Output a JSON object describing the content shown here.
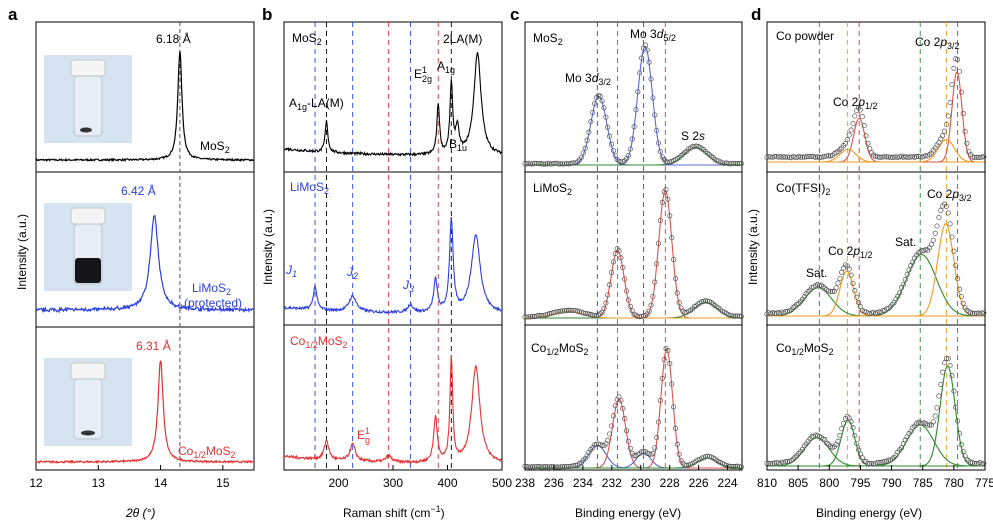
{
  "colors": {
    "black": "#000000",
    "blue": "#2b3fe0",
    "red": "#e23232",
    "green": "#2f8a2f",
    "orange": "#ef9a1f",
    "fitBlue": "#5a6ad8",
    "fitRed": "#d9534f",
    "gray": "#9a9a9a",
    "vialGlass": "#e6edf4",
    "vialCap": "#f4f4f4",
    "vialBg": "#d6e3f1"
  },
  "panels": {
    "a": {
      "label": "a",
      "xlabel": "2θ (°)",
      "ylabel": "Intensity (a.u.)",
      "xlim": [
        12,
        15.5
      ],
      "xticks": [
        "12",
        "13",
        "14",
        "15"
      ],
      "rows": [
        {
          "name": "MoS2",
          "color": "#000000",
          "peak_label": "6.18 Å",
          "peak_x": 14.31,
          "peak_height": 0.95,
          "width": 0.04
        },
        {
          "name": "LiMoS2 (protected)",
          "color": "#2b3fe0",
          "peak_label": "6.42 Å",
          "peak_x": 13.9,
          "peak_height": 0.75,
          "width": 0.08
        },
        {
          "name": "Co1/2MoS2",
          "color": "#e23232",
          "peak_label": "6.31 Å",
          "peak_x": 14.0,
          "peak_height": 0.85,
          "width": 0.05
        }
      ],
      "dashed_x": 14.31,
      "sample_labels": {
        "r0": "MoS",
        "r0s": "2",
        "r1a": "LiMoS",
        "r1as": "2",
        "r1b": "(protected)",
        "r2": "Co",
        "r2s": "1/2",
        "r2b": "MoS",
        "r2bs": "2"
      }
    },
    "b": {
      "label": "b",
      "xlabel": "Raman shift (cm",
      "xlabel_sup": "−1",
      "xlabel_end": ")",
      "ylabel": "Intensity (a.u.)",
      "xlim": [
        100,
        500
      ],
      "xticks": [
        "200",
        "300",
        "400",
        "500"
      ],
      "dashed": [
        {
          "x": 157,
          "color": "#2b3fe0"
        },
        {
          "x": 178,
          "color": "#000000"
        },
        {
          "x": 226,
          "color": "#2b3fe0"
        },
        {
          "x": 292,
          "color": "#e23232"
        },
        {
          "x": 332,
          "color": "#2b3fe0"
        },
        {
          "x": 383,
          "color": "#e23232"
        },
        {
          "x": 407,
          "color": "#000000"
        }
      ],
      "text": {
        "mos2": "MoS",
        "mos2s": "2",
        "a1g_la": "A",
        "a1g_la_s": "1g",
        "a1g_la_end": "-LA(M)",
        "e2g": "E",
        "e2g_sup": "1",
        "e2g_sub": "2g",
        "a1g": "A",
        "a1g_sub": "1g",
        "la2": "2LA(M)",
        "b1u": "B",
        "b1u_sub": "1u",
        "limos2": "LiMoS",
        "limos2s": "2",
        "j1": "J",
        "j1s": "1",
        "j2": "J",
        "j2s": "2",
        "j3": "J",
        "j3s": "3",
        "co": "Co",
        "cos": "1/2",
        "comos": "MoS",
        "comoss": "2",
        "eg": "E",
        "eg_sup": "1",
        "eg_sub": "g"
      }
    },
    "c": {
      "label": "c",
      "xlabel": "Binding energy (eV)",
      "xlim": [
        238,
        223
      ],
      "xticks": [
        "238",
        "236",
        "234",
        "232",
        "230",
        "228",
        "226",
        "224"
      ],
      "dashed": [
        {
          "x": 233.0,
          "color": "#2b3fe0"
        },
        {
          "x": 231.6,
          "color": "#e23232"
        },
        {
          "x": 229.8,
          "color": "#2b3fe0"
        },
        {
          "x": 228.3,
          "color": "#e23232"
        }
      ],
      "text": {
        "mos2": "MoS",
        "mos2s": "2",
        "mo32a": "Mo 3",
        "mo32b": "d",
        "mo32s": "3/2",
        "mo52a": "Mo 3",
        "mo52b": "d",
        "mo52s": "5/2",
        "s2s": "S 2",
        "s2sb": "s",
        "limos2": "LiMoS",
        "limos2s": "2",
        "co": "Co",
        "cos": "1/2",
        "comos": "MoS",
        "comoss": "2"
      }
    },
    "d": {
      "label": "d",
      "xlabel": "Binding energy (eV)",
      "ylabel": "Intensity (a.u.)",
      "xlim": [
        810,
        775
      ],
      "xticks": [
        "810",
        "805",
        "800",
        "795",
        "790",
        "785",
        "780",
        "775"
      ],
      "dashed": [
        {
          "x": 801.6,
          "color": "#2f8a2f"
        },
        {
          "x": 797.1,
          "color": "#ef9a1f"
        },
        {
          "x": 795.2,
          "color": "#e23232"
        },
        {
          "x": 785.4,
          "color": "#2f8a2f"
        },
        {
          "x": 781.2,
          "color": "#ef9a1f"
        },
        {
          "x": 779.4,
          "color": "#e23232"
        }
      ],
      "text": {
        "copowder": "Co powder",
        "co2p32": "Co 2",
        "co2p32b": "p",
        "co2p32s": "3/2",
        "co2p12": "Co 2",
        "co2p12b": "p",
        "co2p12s": "1/2",
        "cotfsi": "Co(TFSI)",
        "cotfsis": "2",
        "sat": "Sat.",
        "co": "Co",
        "cos": "1/2",
        "comos": "MoS",
        "comoss": "2"
      }
    }
  }
}
